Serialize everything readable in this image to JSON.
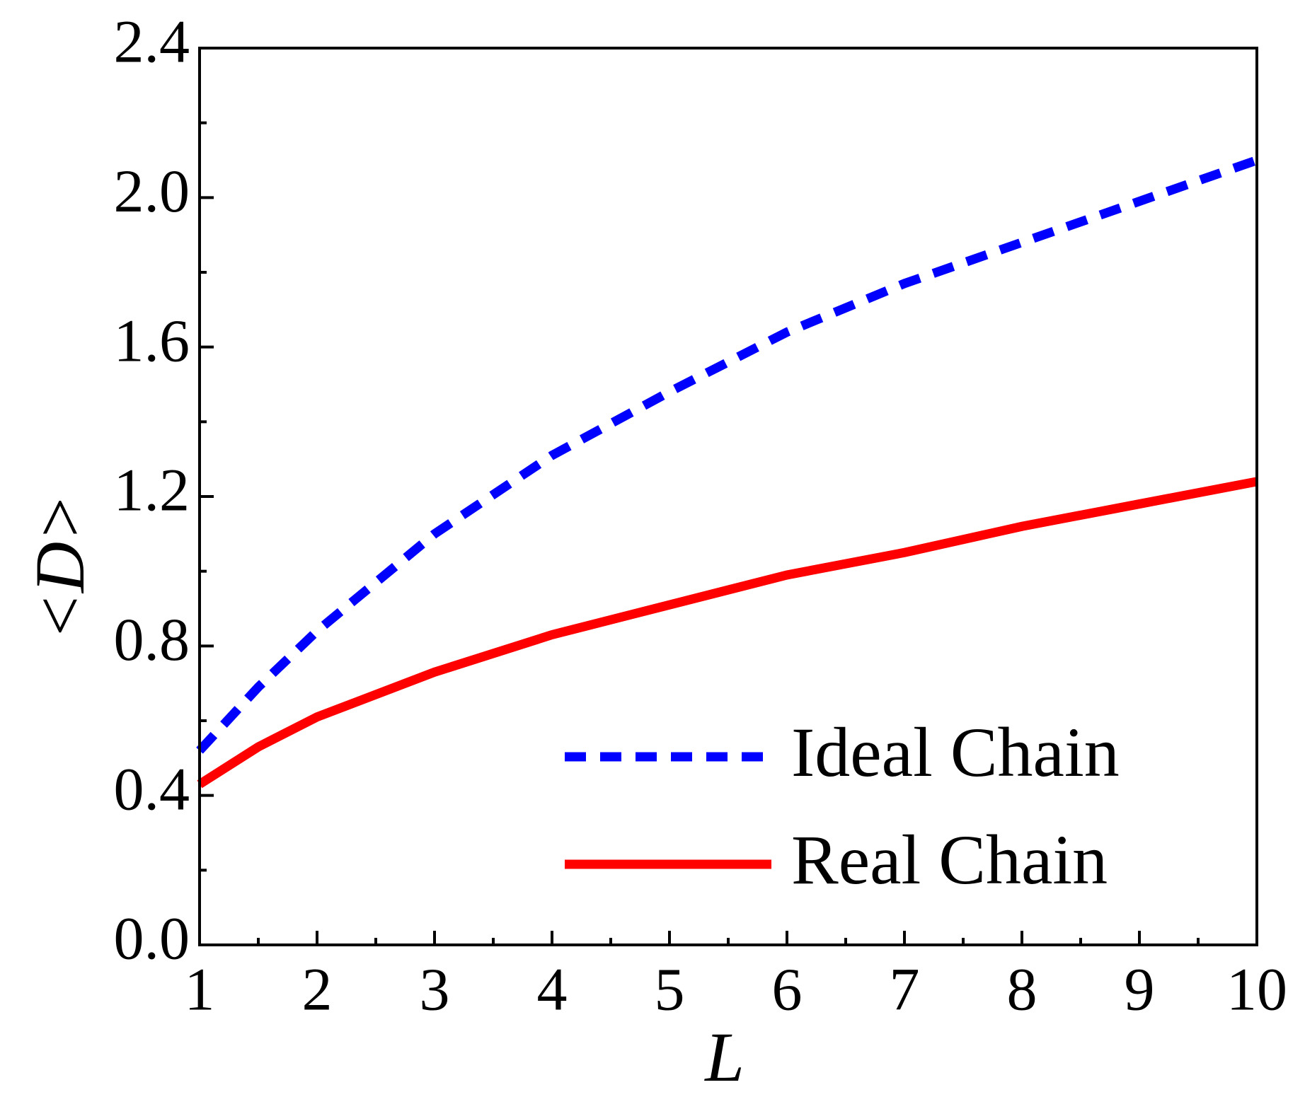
{
  "chart_data": {
    "type": "line",
    "xlabel": "L",
    "ylabel": "<D>",
    "xlim": [
      1,
      10
    ],
    "ylim": [
      0,
      2.4
    ],
    "xticks": [
      1,
      2,
      3,
      4,
      5,
      6,
      7,
      8,
      9,
      10
    ],
    "yticks": [
      {
        "value": 0,
        "label": "0.0"
      },
      0.4,
      0.8,
      1.2,
      1.6,
      {
        "value": 2,
        "label": "2.0"
      },
      2.4
    ],
    "xminorticks": [
      1.5,
      2.5,
      3.5,
      4.5,
      5.5,
      6.5,
      7.5,
      8.5,
      9.5
    ],
    "yminorticks": [
      0.2,
      0.6,
      1.0,
      1.4,
      1.8,
      2.2
    ],
    "legend": "lower right",
    "x": [
      1,
      1.5,
      2,
      3,
      4,
      5,
      6,
      7,
      8,
      9,
      10
    ],
    "series": [
      {
        "name": "Ideal Chain",
        "color": "#0000ff",
        "linestyle": "dashed",
        "values": [
          0.52,
          0.69,
          0.84,
          1.1,
          1.31,
          1.48,
          1.64,
          1.77,
          1.88,
          1.99,
          2.1
        ]
      },
      {
        "name": "Real Chain",
        "color": "#ff0000",
        "linestyle": "solid",
        "values": [
          0.43,
          0.53,
          0.61,
          0.73,
          0.83,
          0.91,
          0.99,
          1.05,
          1.12,
          1.18,
          1.24
        ]
      }
    ]
  }
}
